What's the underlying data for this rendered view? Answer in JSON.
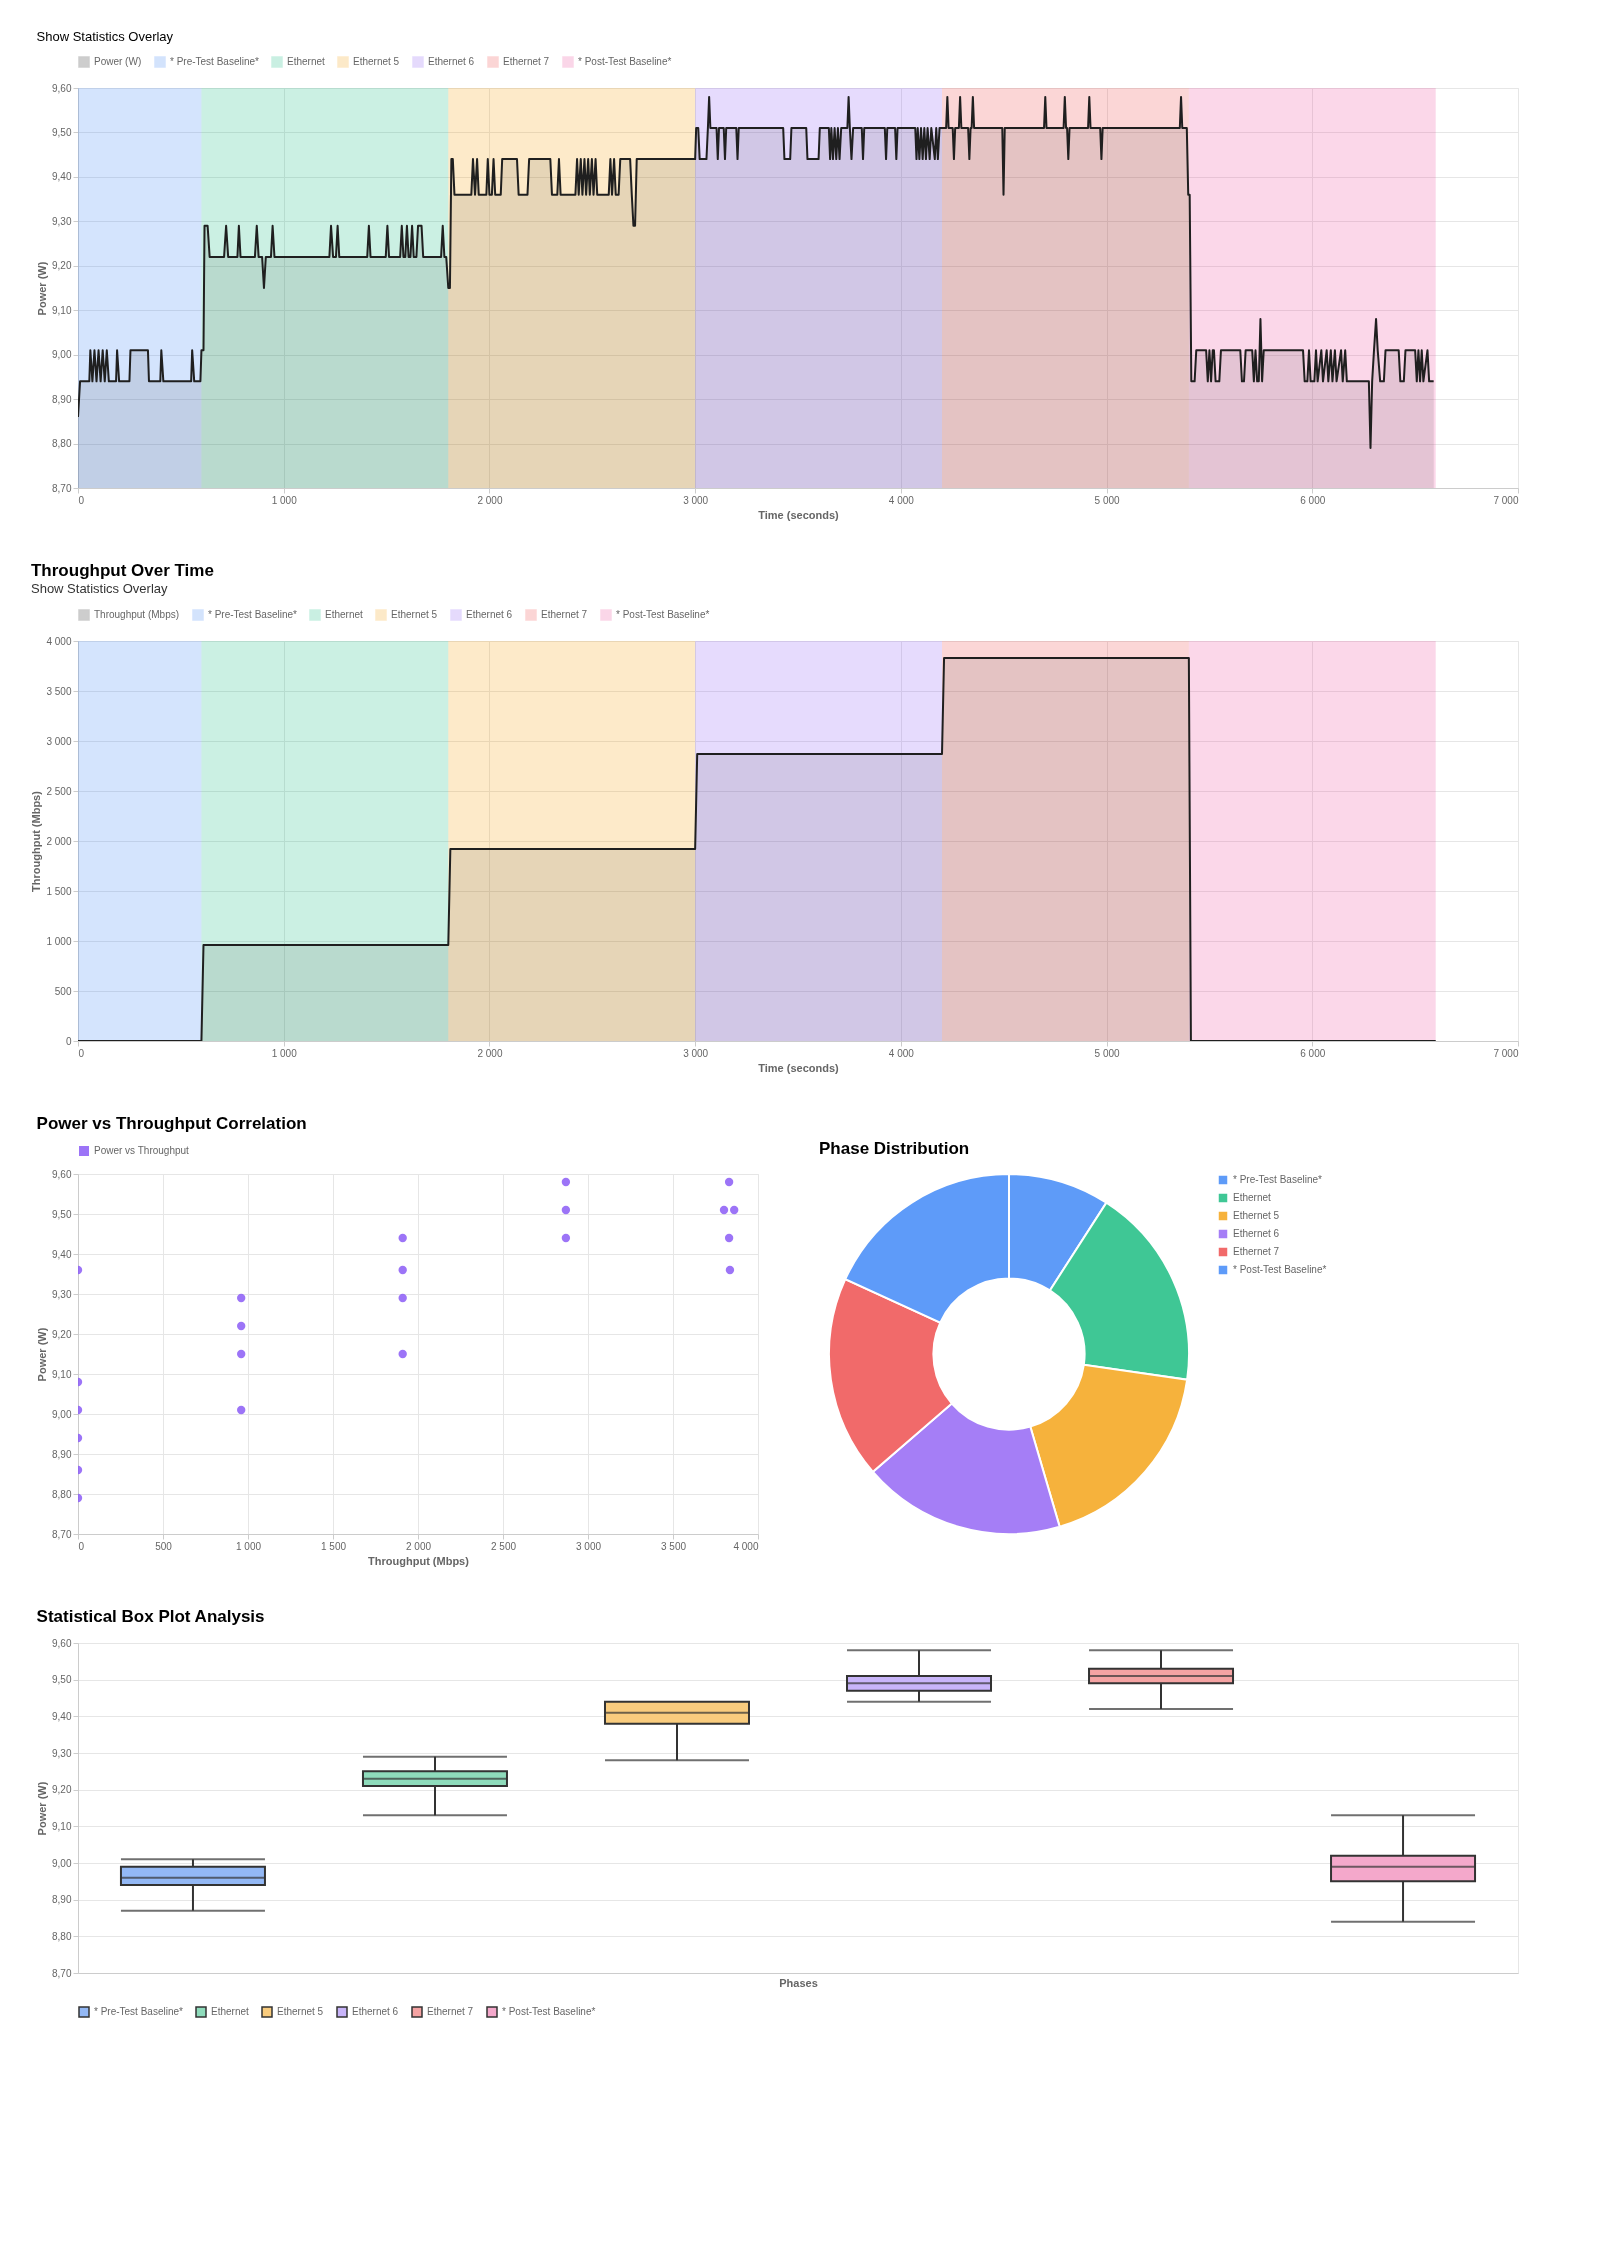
{
  "chart_data": [
    {
      "type": "area",
      "annotations": [
        "Show Statistics Overlay"
      ],
      "xlabel": "Time (seconds)",
      "ylabel": "Power (W)",
      "legend": "top",
      "grid": true,
      "xlim": [
        0,
        7000
      ],
      "xticks": [
        0,
        {
          "value": 1000,
          "label": "1 000"
        },
        {
          "value": 2000,
          "label": "2 000"
        },
        {
          "value": 3000,
          "label": "3 000"
        },
        {
          "value": 4000,
          "label": "4 000"
        },
        {
          "value": 5000,
          "label": "5 000"
        },
        {
          "value": 6000,
          "label": "6 000"
        },
        {
          "value": 7000,
          "label": "7 000"
        }
      ],
      "ylim": [
        8.7,
        9.6
      ],
      "yticks": [
        {
          "value": 8.7,
          "label": "8,70"
        },
        {
          "value": 8.8,
          "label": "8,80"
        },
        {
          "value": 8.9,
          "label": "8,90"
        },
        {
          "value": 9.0,
          "label": "9,00"
        },
        {
          "value": 9.1,
          "label": "9,10"
        },
        {
          "value": 9.2,
          "label": "9,20"
        },
        {
          "value": 9.3,
          "label": "9,30"
        },
        {
          "value": 9.4,
          "label": "9,40"
        },
        {
          "value": 9.5,
          "label": "9,50"
        },
        {
          "value": 9.6,
          "label": "9,60"
        }
      ],
      "bands": [
        {
          "axis": "x",
          "from": 0,
          "to": 600,
          "label": "* Pre-Test Baseline*",
          "color": "#3b82f6"
        },
        {
          "axis": "x",
          "from": 600,
          "to": 1800,
          "label": "Ethernet",
          "color": "#10b981"
        },
        {
          "axis": "x",
          "from": 1800,
          "to": 3000,
          "label": "Ethernet 5",
          "color": "#f59e0b"
        },
        {
          "axis": "x",
          "from": 3000,
          "to": 4200,
          "label": "Ethernet 6",
          "color": "#8b5cf6"
        },
        {
          "axis": "x",
          "from": 4200,
          "to": 5400,
          "label": "Ethernet 7",
          "color": "#ef4444"
        },
        {
          "axis": "x",
          "from": 5400,
          "to": 6600,
          "label": "* Post-Test Baseline*",
          "color": "#ec4899"
        }
      ],
      "series": [
        {
          "name": "Power (W)",
          "color": "#1f1f1f",
          "x": [
            0,
            10,
            55,
            60,
            70,
            80,
            90,
            100,
            110,
            120,
            130,
            140,
            150,
            185,
            190,
            200,
            250,
            255,
            340,
            345,
            400,
            405,
            415,
            550,
            555,
            565,
            595,
            600,
            610,
            615,
            630,
            640,
            710,
            720,
            730,
            775,
            782,
            790,
            860,
            869,
            878,
            895,
            904,
            913,
            938,
            946,
            955,
            1222,
            1230,
            1240,
            1254,
            1262,
            1270,
            1406,
            1414,
            1422,
            1496,
            1504,
            1512,
            1566,
            1574,
            1582,
            1591,
            1599,
            1607,
            1616,
            1624,
            1632,
            1645,
            1653,
            1670,
            1678,
            1765,
            1773,
            1781,
            1790,
            1800,
            1808,
            1815,
            1822,
            1830,
            1912,
            1920,
            1930,
            1940,
            1948,
            1985,
            1992,
            2000,
            2012,
            2020,
            2028,
            2055,
            2062,
            2134,
            2142,
            2185,
            2193,
            2296,
            2304,
            2330,
            2338,
            2346,
            2418,
            2426,
            2434,
            2444,
            2452,
            2462,
            2470,
            2480,
            2488,
            2498,
            2506,
            2516,
            2524,
            2580,
            2588,
            2596,
            2606,
            2614,
            2628,
            2636,
            2684,
            2692,
            2700,
            2708,
            2716,
            3000,
            3005,
            3015,
            3022,
            3055,
            3062,
            3068,
            3074,
            3104,
            3110,
            3116,
            3139,
            3145,
            3151,
            3200,
            3206,
            3212,
            3428,
            3434,
            3462,
            3468,
            3540,
            3546,
            3600,
            3606,
            3650,
            3656,
            3662,
            3670,
            3678,
            3686,
            3694,
            3702,
            3710,
            3740,
            3746,
            3752,
            3760,
            3768,
            3810,
            3816,
            3822,
            3922,
            3928,
            3934,
            3972,
            3978,
            3984,
            4070,
            4076,
            4082,
            4090,
            4098,
            4106,
            4114,
            4122,
            4130,
            4140,
            4148,
            4165,
            4172,
            4180,
            4188,
            4200,
            4220,
            4226,
            4232,
            4252,
            4258,
            4264,
            4282,
            4288,
            4294,
            4327,
            4333,
            4339,
            4344,
            4350,
            4356,
            4493,
            4499,
            4505,
            4696,
            4702,
            4708,
            4791,
            4797,
            4803,
            4808,
            4814,
            4820,
            4910,
            4916,
            4922,
            4969,
            4975,
            4981,
            5356,
            5362,
            5368,
            5390,
            5397,
            5404,
            5412,
            5428,
            5436,
            5484,
            5492,
            5500,
            5508,
            5516,
            5522,
            5530,
            5548,
            5556,
            5650,
            5658,
            5668,
            5676,
            5708,
            5716,
            5724,
            5732,
            5740,
            5748,
            5756,
            5764,
            5955,
            5963,
            5976,
            5984,
            5992,
            6010,
            6018,
            6026,
            6044,
            6052,
            6070,
            6078,
            6090,
            6098,
            6110,
            6118,
            6140,
            6148,
            6160,
            6168,
            6260,
            6275,
            6283,
            6291,
            6300,
            6310,
            6318,
            6330,
            6348,
            6356,
            6420,
            6428,
            6445,
            6453,
            6500,
            6508,
            6516,
            6524,
            6532,
            6540,
            6560,
            6568,
            6590
          ],
          "values": [
            8.86,
            8.94,
            8.94,
            9.01,
            8.94,
            9.01,
            8.94,
            9.01,
            8.94,
            9.01,
            8.94,
            9.01,
            8.94,
            8.94,
            9.01,
            8.94,
            8.94,
            9.01,
            9.01,
            8.94,
            8.94,
            9.01,
            8.94,
            8.94,
            9.01,
            8.94,
            8.94,
            9.01,
            9.01,
            9.29,
            9.29,
            9.22,
            9.22,
            9.29,
            9.22,
            9.22,
            9.29,
            9.22,
            9.22,
            9.29,
            9.22,
            9.22,
            9.15,
            9.22,
            9.22,
            9.29,
            9.22,
            9.22,
            9.29,
            9.22,
            9.22,
            9.29,
            9.22,
            9.22,
            9.29,
            9.22,
            9.22,
            9.29,
            9.22,
            9.22,
            9.29,
            9.22,
            9.22,
            9.29,
            9.22,
            9.22,
            9.29,
            9.22,
            9.22,
            9.29,
            9.29,
            9.22,
            9.22,
            9.29,
            9.22,
            9.22,
            9.15,
            9.15,
            9.44,
            9.44,
            9.36,
            9.36,
            9.44,
            9.36,
            9.44,
            9.36,
            9.36,
            9.44,
            9.36,
            9.36,
            9.44,
            9.36,
            9.36,
            9.44,
            9.44,
            9.36,
            9.36,
            9.44,
            9.44,
            9.36,
            9.36,
            9.44,
            9.36,
            9.36,
            9.44,
            9.36,
            9.44,
            9.36,
            9.44,
            9.36,
            9.44,
            9.36,
            9.44,
            9.36,
            9.44,
            9.36,
            9.36,
            9.44,
            9.36,
            9.44,
            9.36,
            9.36,
            9.44,
            9.44,
            9.36,
            9.29,
            9.29,
            9.44,
            9.44,
            9.51,
            9.51,
            9.44,
            9.44,
            9.51,
            9.58,
            9.51,
            9.51,
            9.44,
            9.51,
            9.51,
            9.44,
            9.51,
            9.51,
            9.44,
            9.51,
            9.51,
            9.44,
            9.44,
            9.51,
            9.51,
            9.44,
            9.44,
            9.51,
            9.51,
            9.44,
            9.51,
            9.44,
            9.51,
            9.44,
            9.51,
            9.44,
            9.51,
            9.51,
            9.58,
            9.51,
            9.44,
            9.51,
            9.51,
            9.44,
            9.51,
            9.51,
            9.44,
            9.51,
            9.51,
            9.44,
            9.51,
            9.51,
            9.44,
            9.51,
            9.44,
            9.51,
            9.44,
            9.51,
            9.44,
            9.51,
            9.44,
            9.51,
            9.44,
            9.51,
            9.44,
            9.51,
            9.51,
            9.51,
            9.58,
            9.51,
            9.51,
            9.44,
            9.51,
            9.51,
            9.58,
            9.51,
            9.51,
            9.44,
            9.51,
            9.51,
            9.58,
            9.51,
            9.51,
            9.36,
            9.51,
            9.51,
            9.58,
            9.51,
            9.51,
            9.58,
            9.51,
            9.51,
            9.44,
            9.51,
            9.51,
            9.58,
            9.51,
            9.51,
            9.44,
            9.51,
            9.51,
            9.58,
            9.51,
            9.51,
            9.36,
            9.36,
            8.94,
            8.94,
            9.01,
            9.01,
            8.94,
            9.01,
            8.94,
            9.01,
            9.01,
            8.94,
            8.94,
            9.01,
            9.01,
            8.94,
            8.94,
            9.01,
            9.01,
            8.94,
            9.01,
            8.94,
            8.94,
            9.08,
            8.94,
            9.01,
            9.01,
            8.94,
            8.94,
            9.01,
            8.94,
            8.94,
            9.01,
            8.94,
            9.01,
            8.94,
            9.01,
            8.94,
            9.01,
            8.94,
            9.01,
            8.94,
            9.01,
            8.94,
            9.01,
            8.94,
            8.94,
            8.94,
            8.79,
            8.94,
            9.01,
            9.08,
            9.01,
            8.94,
            8.94,
            9.01,
            9.01,
            8.94,
            8.94,
            9.01,
            9.01,
            8.94,
            9.01,
            8.94,
            9.01,
            8.94,
            9.01,
            8.94,
            8.94
          ]
        }
      ]
    },
    {
      "type": "area",
      "title": "Throughput Over Time",
      "annotations": [
        "Show Statistics Overlay"
      ],
      "xlabel": "Time (seconds)",
      "ylabel": "Throughput (Mbps)",
      "legend": "top",
      "grid": true,
      "xlim": [
        0,
        7000
      ],
      "xticks": [
        0,
        {
          "value": 1000,
          "label": "1 000"
        },
        {
          "value": 2000,
          "label": "2 000"
        },
        {
          "value": 3000,
          "label": "3 000"
        },
        {
          "value": 4000,
          "label": "4 000"
        },
        {
          "value": 5000,
          "label": "5 000"
        },
        {
          "value": 6000,
          "label": "6 000"
        },
        {
          "value": 7000,
          "label": "7 000"
        }
      ],
      "ylim": [
        0,
        4000
      ],
      "yticks": [
        0,
        500,
        {
          "value": 1000,
          "label": "1 000"
        },
        {
          "value": 1500,
          "label": "1 500"
        },
        {
          "value": 2000,
          "label": "2 000"
        },
        {
          "value": 2500,
          "label": "2 500"
        },
        {
          "value": 3000,
          "label": "3 000"
        },
        {
          "value": 3500,
          "label": "3 500"
        },
        {
          "value": 4000,
          "label": "4 000"
        }
      ],
      "bands": [
        {
          "axis": "x",
          "from": 0,
          "to": 600,
          "label": "* Pre-Test Baseline*",
          "color": "#3b82f6"
        },
        {
          "axis": "x",
          "from": 600,
          "to": 1800,
          "label": "Ethernet",
          "color": "#10b981"
        },
        {
          "axis": "x",
          "from": 1800,
          "to": 3000,
          "label": "Ethernet 5",
          "color": "#f59e0b"
        },
        {
          "axis": "x",
          "from": 3000,
          "to": 4200,
          "label": "Ethernet 6",
          "color": "#8b5cf6"
        },
        {
          "axis": "x",
          "from": 4200,
          "to": 5400,
          "label": "Ethernet 7",
          "color": "#ef4444"
        },
        {
          "axis": "x",
          "from": 5400,
          "to": 6600,
          "label": "* Post-Test Baseline*",
          "color": "#ec4899"
        }
      ],
      "series": [
        {
          "name": "Throughput (Mbps)",
          "color": "#1f1f1f",
          "x": [
            0,
            600,
            610,
            1800,
            1810,
            3000,
            3010,
            4200,
            4210,
            5400,
            5410,
            6600
          ],
          "values": [
            0,
            0,
            960,
            960,
            1920,
            1920,
            2870,
            2870,
            3830,
            3830,
            0,
            0
          ]
        }
      ]
    },
    {
      "type": "scatter",
      "title": "Power vs Throughput Correlation",
      "xlabel": "Throughput (Mbps)",
      "ylabel": "Power (W)",
      "legend": "top",
      "grid": true,
      "marker": "circle",
      "xlim": [
        0,
        4000
      ],
      "xticks": [
        0,
        500,
        {
          "value": 1000,
          "label": "1 000"
        },
        {
          "value": 1500,
          "label": "1 500"
        },
        {
          "value": 2000,
          "label": "2 000"
        },
        {
          "value": 2500,
          "label": "2 500"
        },
        {
          "value": 3000,
          "label": "3 000"
        },
        {
          "value": 3500,
          "label": "3 500"
        },
        {
          "value": 4000,
          "label": "4 000"
        }
      ],
      "ylim": [
        8.7,
        9.6
      ],
      "yticks": [
        {
          "value": 8.7,
          "label": "8,70"
        },
        {
          "value": 8.8,
          "label": "8,80"
        },
        {
          "value": 8.9,
          "label": "8,90"
        },
        {
          "value": 9.0,
          "label": "9,00"
        },
        {
          "value": 9.1,
          "label": "9,10"
        },
        {
          "value": 9.2,
          "label": "9,20"
        },
        {
          "value": 9.3,
          "label": "9,30"
        },
        {
          "value": 9.4,
          "label": "9,40"
        },
        {
          "value": 9.5,
          "label": "9,50"
        },
        {
          "value": 9.6,
          "label": "9,60"
        }
      ],
      "series": [
        {
          "name": "Power vs Throughput",
          "color": "#8b5cf6",
          "x": [
            0,
            0,
            0,
            0,
            0,
            0,
            960,
            960,
            960,
            960,
            1910,
            1910,
            1910,
            1910,
            2870,
            2870,
            2870,
            3830,
            3800,
            3860,
            3830,
            3835
          ],
          "values": [
            9.36,
            9.08,
            9.01,
            8.94,
            8.86,
            8.79,
            9.29,
            9.22,
            9.15,
            9.01,
            9.44,
            9.36,
            9.29,
            9.15,
            9.58,
            9.51,
            9.44,
            9.58,
            9.51,
            9.51,
            9.44,
            9.36
          ]
        }
      ]
    },
    {
      "type": "donut",
      "title": "Phase Distribution",
      "legend": "right",
      "categories": [
        "* Pre-Test Baseline*",
        "Ethernet",
        "Ethernet 5",
        "Ethernet 6",
        "Ethernet 7",
        "* Post-Test Baseline*"
      ],
      "values": [
        9.1,
        18.18,
        18.18,
        18.18,
        18.18,
        18.18
      ],
      "colors": [
        "#5e9bf8",
        "#3fc795",
        "#f6b23c",
        "#a57ef6",
        "#f16a6a",
        "#5e9bf9"
      ]
    },
    {
      "type": "box",
      "title": "Statistical Box Plot Analysis",
      "xlabel": "Phases",
      "ylabel": "Power (W)",
      "legend": "bottom",
      "grid": "y",
      "tick_labels": "y",
      "ylim": [
        8.7,
        9.6
      ],
      "yticks": [
        {
          "value": 8.7,
          "label": "8,70"
        },
        {
          "value": 8.8,
          "label": "8,80"
        },
        {
          "value": 8.9,
          "label": "8,90"
        },
        {
          "value": 9.0,
          "label": "9,00"
        },
        {
          "value": 9.1,
          "label": "9,10"
        },
        {
          "value": 9.2,
          "label": "9,20"
        },
        {
          "value": 9.3,
          "label": "9,30"
        },
        {
          "value": 9.4,
          "label": "9,40"
        },
        {
          "value": 9.5,
          "label": "9,50"
        },
        {
          "value": 9.6,
          "label": "9,60"
        }
      ],
      "categories": [
        null
      ],
      "series": [
        {
          "name": "* Pre-Test Baseline*",
          "color": "#93b8f5",
          "boxes": [
            {
              "low": 8.87,
              "q1": 8.94,
              "median": 8.96,
              "q3": 8.99,
              "high": 9.01
            }
          ]
        },
        {
          "name": "Ethernet",
          "color": "#8edbbb",
          "boxes": [
            {
              "low": 9.13,
              "q1": 9.21,
              "median": 9.23,
              "q3": 9.25,
              "high": 9.29
            }
          ]
        },
        {
          "name": "Ethernet 5",
          "color": "#f9cc7e",
          "boxes": [
            {
              "low": 9.28,
              "q1": 9.38,
              "median": 9.41,
              "q3": 9.44,
              "high": 9.44
            }
          ]
        },
        {
          "name": "Ethernet 6",
          "color": "#c8b4f9",
          "boxes": [
            {
              "low": 9.44,
              "q1": 9.47,
              "median": 9.49,
              "q3": 9.51,
              "high": 9.58
            }
          ]
        },
        {
          "name": "Ethernet 7",
          "color": "#f5a3a3",
          "boxes": [
            {
              "low": 9.42,
              "q1": 9.49,
              "median": 9.51,
              "q3": 9.53,
              "high": 9.58
            }
          ]
        },
        {
          "name": "* Post-Test Baseline*",
          "color": "#f4a8cb",
          "boxes": [
            {
              "low": 8.84,
              "q1": 8.95,
              "median": 8.99,
              "q3": 9.02,
              "high": 9.13
            }
          ]
        }
      ]
    }
  ]
}
